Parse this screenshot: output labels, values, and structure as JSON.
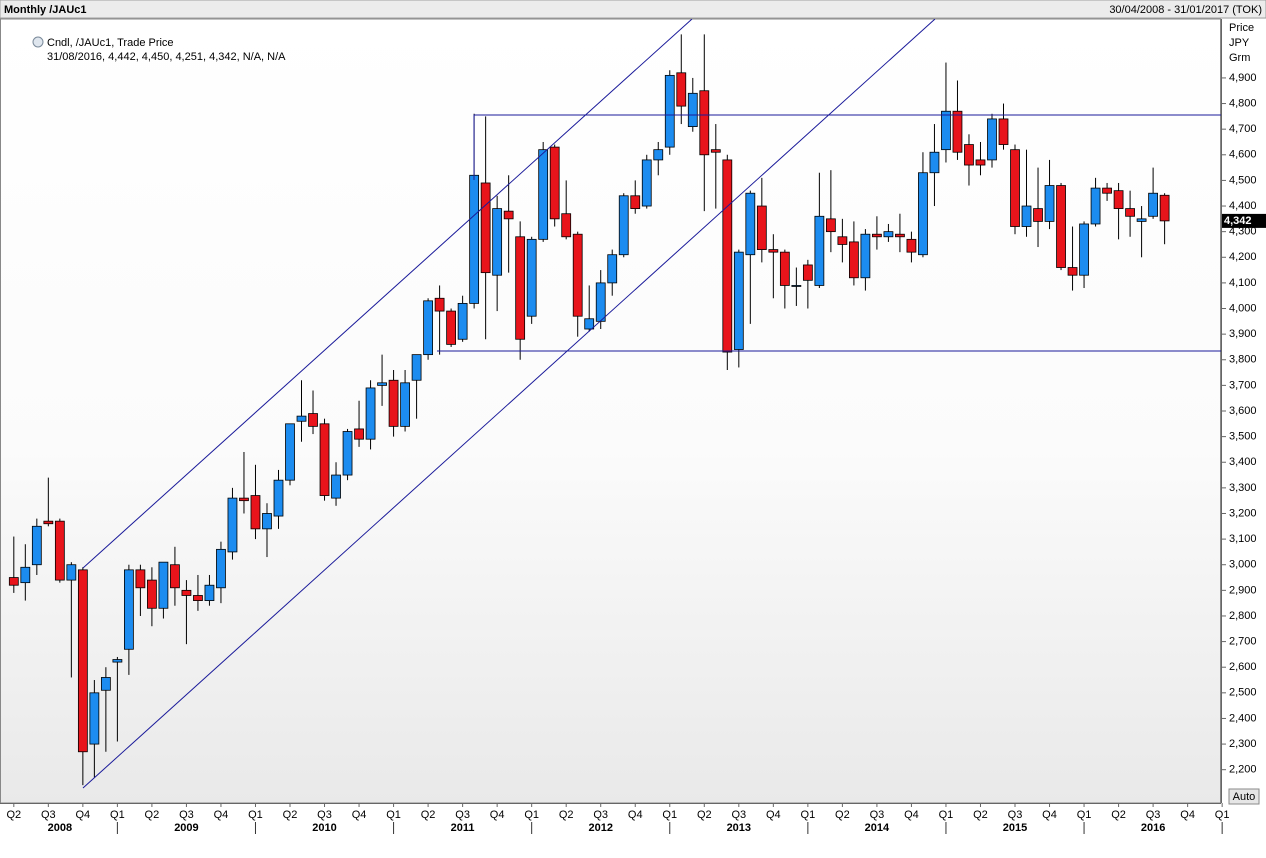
{
  "header": {
    "title": "Monthly /JAUc1",
    "range": "30/04/2008 - 31/01/2017 (TOK)"
  },
  "chart_data": {
    "type": "candlestick",
    "legend": {
      "title": "Cndl, /JAUc1, Trade Price",
      "values": "31/08/2016, 4,442, 4,450, 4,251, 4,342, N/A, N/A"
    },
    "y_axis_label": [
      "Price",
      "JPY",
      "Grm"
    ],
    "up_color": "#1c8cf0",
    "down_color": "#e8141b",
    "open": [
      2950,
      2930,
      3000,
      3170,
      3170,
      2940,
      2980,
      2300,
      2510,
      2620,
      2670,
      2980,
      2940,
      2830,
      3000,
      2900,
      2880,
      2860,
      2910,
      3050,
      3260,
      3270,
      3140,
      3190,
      3330,
      3560,
      3590,
      3550,
      3260,
      3350,
      3530,
      3490,
      3700,
      3720,
      3540,
      3720,
      3820,
      4040,
      3990,
      3880,
      4020,
      4490,
      4130,
      4380,
      4280,
      3970,
      4270,
      4630,
      4370,
      4290,
      3920,
      3950,
      4100,
      4210,
      4440,
      4400,
      4580,
      4630,
      4920,
      4710,
      4850,
      4620,
      4580,
      3840,
      4210,
      4400,
      4230,
      4220,
      4090,
      4170,
      4090,
      4350,
      4280,
      4260,
      4120,
      4290,
      4280,
      4290,
      4270,
      4210,
      4530,
      4620,
      4770,
      4640,
      4580,
      4580,
      4740,
      4620,
      4320,
      4390,
      4340,
      4480,
      4160,
      4130,
      4330,
      4470,
      4460,
      4390,
      4340,
      4360,
      4442
    ],
    "high": [
      3110,
      3080,
      3180,
      3340,
      3180,
      3010,
      2990,
      2550,
      2600,
      2640,
      3000,
      3000,
      2990,
      3010,
      3070,
      2940,
      2960,
      2960,
      3090,
      3300,
      3440,
      3390,
      3240,
      3370,
      3550,
      3720,
      3680,
      3570,
      3400,
      3530,
      3640,
      3720,
      3820,
      3760,
      3760,
      3810,
      4040,
      4090,
      4000,
      4050,
      4760,
      4750,
      4440,
      4520,
      4340,
      4280,
      4650,
      4640,
      4500,
      4300,
      4090,
      4150,
      4230,
      4450,
      4500,
      4600,
      4650,
      4930,
      5070,
      4900,
      5070,
      4720,
      4600,
      4230,
      4460,
      4510,
      4290,
      4230,
      4160,
      4190,
      4530,
      4540,
      4350,
      4340,
      4310,
      4360,
      4330,
      4370,
      4300,
      4610,
      4720,
      4960,
      4890,
      4680,
      4650,
      4760,
      4800,
      4640,
      4620,
      4550,
      4580,
      4490,
      4320,
      4340,
      4510,
      4490,
      4490,
      4460,
      4400,
      4550,
      4450
    ],
    "low": [
      2890,
      2860,
      2960,
      3150,
      2930,
      2560,
      2140,
      2170,
      2270,
      2310,
      2570,
      2800,
      2760,
      2790,
      2840,
      2690,
      2820,
      2840,
      2850,
      3020,
      3200,
      3100,
      3030,
      3140,
      3310,
      3480,
      3510,
      3250,
      3230,
      3330,
      3460,
      3450,
      3620,
      3500,
      3520,
      3570,
      3800,
      3820,
      3850,
      3870,
      4000,
      3880,
      3990,
      4140,
      3800,
      3940,
      4260,
      4320,
      4270,
      3890,
      3910,
      3920,
      4050,
      4200,
      4370,
      4390,
      4520,
      4600,
      4720,
      4690,
      4380,
      4390,
      3760,
      3770,
      3940,
      4180,
      4040,
      4000,
      4010,
      4000,
      4080,
      4220,
      4180,
      4090,
      4070,
      4230,
      4260,
      4220,
      4180,
      4200,
      4400,
      4570,
      4580,
      4480,
      4520,
      4550,
      4620,
      4290,
      4280,
      4240,
      4310,
      4150,
      4070,
      4080,
      4320,
      4420,
      4270,
      4280,
      4200,
      4350,
      4251
    ],
    "close": [
      2920,
      2990,
      3150,
      3160,
      2940,
      3000,
      2270,
      2500,
      2560,
      2630,
      2980,
      2910,
      2830,
      3010,
      2910,
      2880,
      2860,
      2920,
      3060,
      3260,
      3250,
      3140,
      3200,
      3330,
      3550,
      3580,
      3540,
      3270,
      3350,
      3520,
      3490,
      3690,
      3710,
      3540,
      3710,
      3820,
      4030,
      3990,
      3860,
      4020,
      4520,
      4140,
      4390,
      4350,
      3880,
      4270,
      4620,
      4350,
      4280,
      3970,
      3960,
      4100,
      4210,
      4440,
      4390,
      4580,
      4620,
      4910,
      4790,
      4840,
      4600,
      4610,
      3830,
      4220,
      4450,
      4230,
      4220,
      4090,
      4090,
      4110,
      4360,
      4300,
      4250,
      4120,
      4290,
      4280,
      4300,
      4280,
      4220,
      4530,
      4610,
      4770,
      4610,
      4560,
      4560,
      4740,
      4640,
      4320,
      4400,
      4340,
      4480,
      4160,
      4130,
      4330,
      4470,
      4450,
      4390,
      4360,
      4350,
      4450,
      4342
    ],
    "last_price": {
      "value": 4342,
      "label": "4,342"
    },
    "ylim": [
      2070,
      5130
    ],
    "yticks": [
      {
        "value": 2200,
        "label": "2,200"
      },
      {
        "value": 2300,
        "label": "2,300"
      },
      {
        "value": 2400,
        "label": "2,400"
      },
      {
        "value": 2500,
        "label": "2,500"
      },
      {
        "value": 2600,
        "label": "2,600"
      },
      {
        "value": 2700,
        "label": "2,700"
      },
      {
        "value": 2800,
        "label": "2,800"
      },
      {
        "value": 2900,
        "label": "2,900"
      },
      {
        "value": 3000,
        "label": "3,000"
      },
      {
        "value": 3100,
        "label": "3,100"
      },
      {
        "value": 3200,
        "label": "3,200"
      },
      {
        "value": 3300,
        "label": "3,300"
      },
      {
        "value": 3400,
        "label": "3,400"
      },
      {
        "value": 3500,
        "label": "3,500"
      },
      {
        "value": 3600,
        "label": "3,600"
      },
      {
        "value": 3700,
        "label": "3,700"
      },
      {
        "value": 3800,
        "label": "3,800"
      },
      {
        "value": 3900,
        "label": "3,900"
      },
      {
        "value": 4000,
        "label": "4,000"
      },
      {
        "value": 4100,
        "label": "4,100"
      },
      {
        "value": 4200,
        "label": "4,200"
      },
      {
        "value": 4300,
        "label": "4,300"
      },
      {
        "value": 4400,
        "label": "4,400"
      },
      {
        "value": 4500,
        "label": "4,500"
      },
      {
        "value": 4600,
        "label": "4,600"
      },
      {
        "value": 4700,
        "label": "4,700"
      },
      {
        "value": 4800,
        "label": "4,800"
      },
      {
        "value": 4900,
        "label": "4,900"
      }
    ],
    "xlim": [
      -1.2,
      104.9
    ],
    "xticks": [
      {
        "value": 0,
        "label": "Q2"
      },
      {
        "value": 3,
        "label": "Q3"
      },
      {
        "value": 6,
        "label": "Q4"
      },
      {
        "value": 9,
        "label": "Q1"
      },
      {
        "value": 12,
        "label": "Q2"
      },
      {
        "value": 15,
        "label": "Q3"
      },
      {
        "value": 18,
        "label": "Q4"
      },
      {
        "value": 21,
        "label": "Q1"
      },
      {
        "value": 24,
        "label": "Q2"
      },
      {
        "value": 27,
        "label": "Q3"
      },
      {
        "value": 30,
        "label": "Q4"
      },
      {
        "value": 33,
        "label": "Q1"
      },
      {
        "value": 36,
        "label": "Q2"
      },
      {
        "value": 39,
        "label": "Q3"
      },
      {
        "value": 42,
        "label": "Q4"
      },
      {
        "value": 45,
        "label": "Q1"
      },
      {
        "value": 48,
        "label": "Q2"
      },
      {
        "value": 51,
        "label": "Q3"
      },
      {
        "value": 54,
        "label": "Q4"
      },
      {
        "value": 57,
        "label": "Q1"
      },
      {
        "value": 60,
        "label": "Q2"
      },
      {
        "value": 63,
        "label": "Q3"
      },
      {
        "value": 66,
        "label": "Q4"
      },
      {
        "value": 69,
        "label": "Q1"
      },
      {
        "value": 72,
        "label": "Q2"
      },
      {
        "value": 75,
        "label": "Q3"
      },
      {
        "value": 78,
        "label": "Q4"
      },
      {
        "value": 81,
        "label": "Q1"
      },
      {
        "value": 84,
        "label": "Q2"
      },
      {
        "value": 87,
        "label": "Q3"
      },
      {
        "value": 90,
        "label": "Q4"
      },
      {
        "value": 93,
        "label": "Q1"
      },
      {
        "value": 96,
        "label": "Q2"
      },
      {
        "value": 99,
        "label": "Q3"
      },
      {
        "value": 102,
        "label": "Q4"
      },
      {
        "value": 105,
        "label": "Q1"
      }
    ],
    "year_ticks": [
      {
        "value": 4,
        "label": "2008"
      },
      {
        "value": 15,
        "label": "2009"
      },
      {
        "value": 27,
        "label": "2010"
      },
      {
        "value": 39,
        "label": "2011"
      },
      {
        "value": 51,
        "label": "2012"
      },
      {
        "value": 63,
        "label": "2013"
      },
      {
        "value": 75,
        "label": "2014"
      },
      {
        "value": 87,
        "label": "2015"
      },
      {
        "value": 99,
        "label": "2016"
      }
    ],
    "auto_button": "Auto"
  }
}
